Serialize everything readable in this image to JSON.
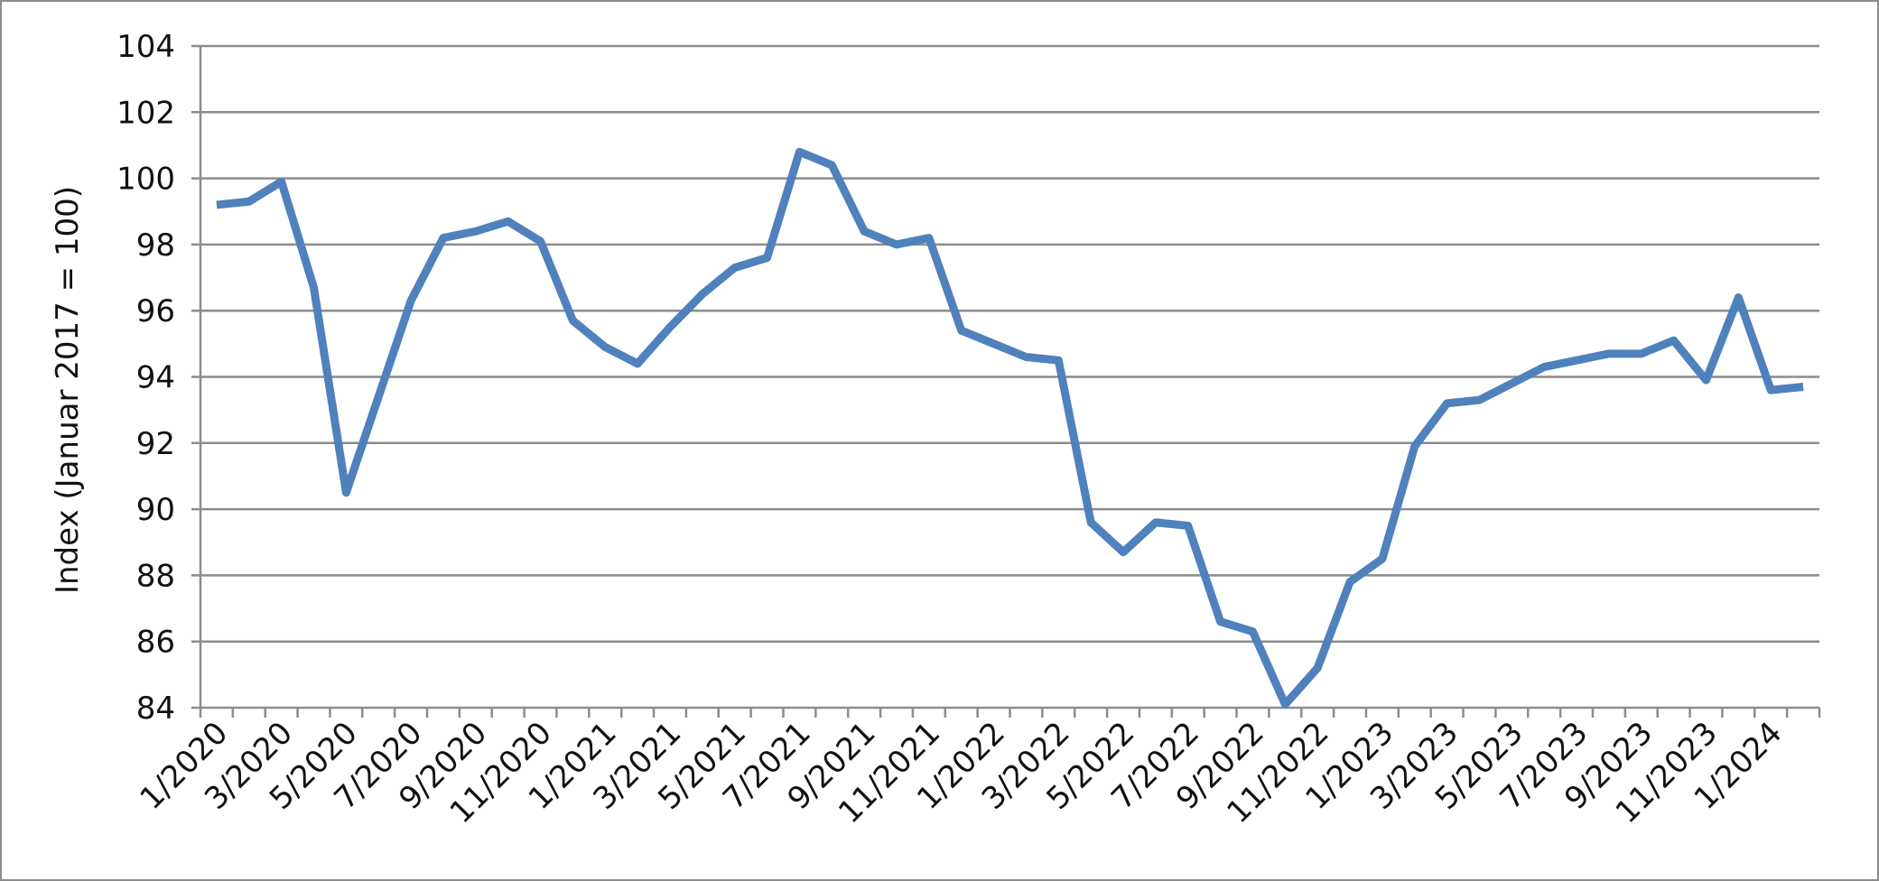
{
  "chart_data": {
    "type": "line",
    "y_label": "Index (Januar 2017 = 100)",
    "categories": [
      "1/2020",
      null,
      "3/2020",
      null,
      "5/2020",
      null,
      "7/2020",
      null,
      "9/2020",
      null,
      "11/2020",
      null,
      "1/2021",
      null,
      "3/2021",
      null,
      "5/2021",
      null,
      "7/2021",
      null,
      "9/2021",
      null,
      "11/2021",
      null,
      "1/2022",
      null,
      "3/2022",
      null,
      "5/2022",
      null,
      "7/2022",
      null,
      "9/2022",
      null,
      "11/2022",
      null,
      "1/2023",
      null,
      "3/2023",
      null,
      "5/2023",
      null,
      "7/2023",
      null,
      "9/2023",
      null,
      "11/2023",
      null,
      "1/2024",
      null
    ],
    "series": [
      {
        "color": "#4f81bd",
        "values": [
          99.2,
          99.3,
          99.9,
          96.7,
          90.5,
          93.4,
          96.3,
          98.2,
          98.4,
          98.7,
          98.1,
          95.7,
          94.9,
          94.4,
          95.5,
          96.5,
          97.3,
          97.6,
          100.8,
          100.4,
          98.4,
          98.0,
          98.2,
          95.4,
          95.0,
          94.6,
          94.5,
          89.6,
          88.7,
          89.6,
          89.5,
          86.6,
          86.3,
          84.1,
          85.2,
          87.8,
          88.5,
          91.9,
          93.2,
          93.3,
          93.8,
          94.3,
          94.5,
          94.7,
          94.7,
          95.1,
          93.9,
          96.4,
          93.6,
          93.7
        ]
      }
    ],
    "ylim": [
      84,
      104
    ],
    "yticks": [
      84,
      86,
      88,
      90,
      92,
      94,
      96,
      98,
      100,
      102,
      104
    ],
    "grid": true
  }
}
